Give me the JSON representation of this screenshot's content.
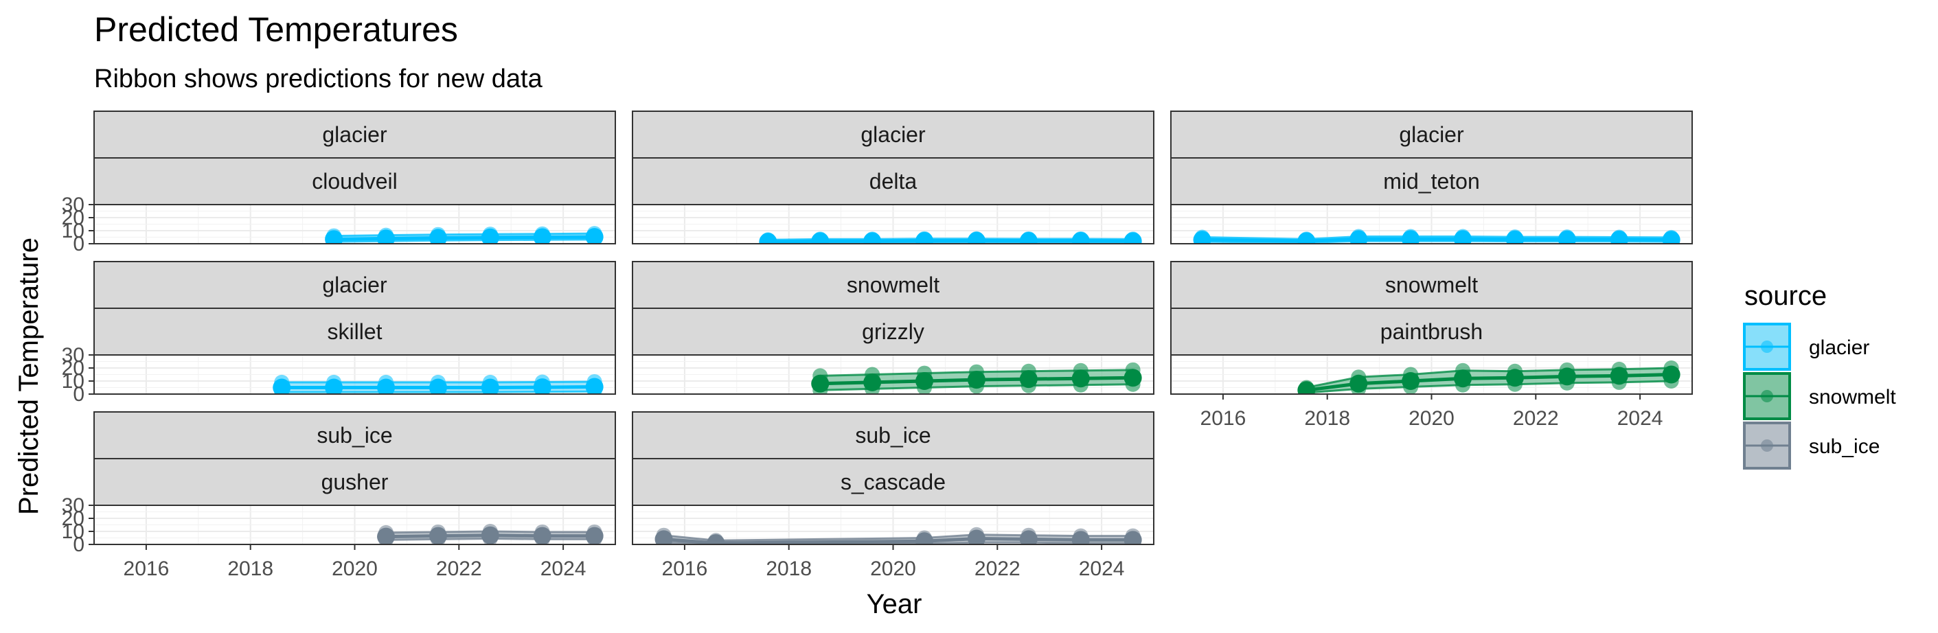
{
  "chart_data": {
    "type": "line",
    "title": "Predicted Temperatures",
    "subtitle": "Ribbon shows predictions for new data",
    "xlabel": "Year",
    "ylabel": "Predicted Temperature",
    "xlim": [
      2015,
      2025
    ],
    "ylim": [
      0,
      30
    ],
    "x_ticks": [
      2016,
      2018,
      2020,
      2022,
      2024
    ],
    "x_tick_labels": [
      "2016",
      "2018",
      "2020",
      "2022",
      "2024"
    ],
    "y_ticks": [
      0,
      10,
      20,
      30
    ],
    "y_tick_labels": [
      "0",
      "10",
      "20",
      "30"
    ],
    "grid": true,
    "legend": {
      "title": "source",
      "position": "right",
      "entries": [
        {
          "label": "glacier",
          "color": "#00BFFF",
          "fill": "#87DFFA"
        },
        {
          "label": "snowmelt",
          "color": "#008B45",
          "fill": "#80C5A2"
        },
        {
          "label": "sub_ice",
          "color": "#708090",
          "fill": "#B7BFC7"
        }
      ]
    },
    "panels": [
      {
        "source": "glacier",
        "site": "cloudveil",
        "x": [
          2019.6,
          2020.6,
          2021.6,
          2022.6,
          2023.6,
          2024.6
        ],
        "y": [
          3.5,
          4.0,
          4.5,
          4.8,
          5.0,
          5.2
        ],
        "lower": [
          1.5,
          2.0,
          2.5,
          2.8,
          3.0,
          3.2
        ],
        "upper": [
          6.0,
          6.5,
          7.0,
          7.3,
          7.5,
          7.8
        ]
      },
      {
        "source": "glacier",
        "site": "delta",
        "x": [
          2017.6,
          2018.6,
          2019.6,
          2020.6,
          2021.6,
          2022.6,
          2023.6,
          2024.6
        ],
        "y": [
          1.5,
          2.0,
          2.0,
          2.2,
          2.3,
          2.2,
          2.2,
          2.0
        ],
        "lower": [
          0.5,
          0.8,
          0.8,
          1.0,
          1.0,
          1.0,
          1.0,
          0.8
        ],
        "upper": [
          3.0,
          3.5,
          3.5,
          3.8,
          3.8,
          3.7,
          3.7,
          3.5
        ]
      },
      {
        "source": "glacier",
        "site": "mid_teton",
        "x": [
          2015.6,
          2017.6,
          2018.6,
          2019.6,
          2020.6,
          2021.6,
          2022.6,
          2023.6,
          2024.6
        ],
        "y": [
          3.0,
          2.0,
          3.5,
          3.5,
          3.5,
          3.3,
          3.3,
          3.2,
          3.0
        ],
        "lower": [
          1.5,
          0.8,
          2.0,
          2.0,
          2.0,
          1.8,
          1.8,
          1.7,
          1.5
        ],
        "upper": [
          5.0,
          3.5,
          5.5,
          5.5,
          5.5,
          5.2,
          5.2,
          5.0,
          4.8
        ]
      },
      {
        "source": "glacier",
        "site": "skillet",
        "x": [
          2018.6,
          2019.6,
          2020.6,
          2021.6,
          2022.6,
          2023.6,
          2024.6
        ],
        "y": [
          5.0,
          5.0,
          5.0,
          5.0,
          5.0,
          5.2,
          5.5
        ],
        "lower": [
          1.5,
          1.5,
          1.5,
          1.5,
          1.5,
          1.8,
          2.0
        ],
        "upper": [
          9.0,
          9.0,
          9.0,
          9.0,
          9.0,
          9.2,
          9.5
        ]
      },
      {
        "source": "snowmelt",
        "site": "grizzly",
        "x": [
          2018.6,
          2019.6,
          2020.6,
          2021.6,
          2022.6,
          2023.6,
          2024.6
        ],
        "y": [
          8.0,
          9.0,
          10.0,
          11.0,
          11.5,
          12.0,
          12.5
        ],
        "lower": [
          3.0,
          4.0,
          5.0,
          6.0,
          6.5,
          7.0,
          7.5
        ],
        "upper": [
          14.0,
          15.0,
          16.0,
          17.0,
          17.5,
          18.0,
          18.5
        ]
      },
      {
        "source": "snowmelt",
        "site": "paintbrush",
        "x": [
          2017.6,
          2018.6,
          2019.6,
          2020.6,
          2021.6,
          2022.6,
          2023.6,
          2024.6
        ],
        "y": [
          3.0,
          8.0,
          10.0,
          12.0,
          12.5,
          13.5,
          14.0,
          15.0
        ],
        "lower": [
          1.0,
          4.0,
          5.5,
          7.0,
          7.5,
          8.5,
          9.0,
          10.0
        ],
        "upper": [
          5.0,
          13.0,
          15.0,
          18.0,
          17.5,
          18.5,
          19.0,
          20.0
        ]
      },
      {
        "source": "sub_ice",
        "site": "gusher",
        "x": [
          2020.6,
          2021.6,
          2022.6,
          2023.6,
          2024.6
        ],
        "y": [
          6.0,
          6.5,
          7.0,
          6.5,
          6.5
        ],
        "lower": [
          3.5,
          4.0,
          4.5,
          4.0,
          4.0
        ],
        "upper": [
          9.0,
          9.5,
          10.0,
          9.5,
          9.5
        ]
      },
      {
        "source": "sub_ice",
        "site": "s_cascade",
        "x": [
          2015.6,
          2016.6,
          2020.6,
          2021.6,
          2022.6,
          2023.6,
          2024.6
        ],
        "y": [
          4.0,
          1.0,
          2.5,
          4.5,
          4.0,
          3.5,
          3.5
        ],
        "lower": [
          1.5,
          0.0,
          0.5,
          1.5,
          1.5,
          1.0,
          1.0
        ],
        "upper": [
          7.0,
          3.0,
          5.0,
          7.5,
          7.0,
          6.5,
          6.5
        ]
      }
    ]
  }
}
